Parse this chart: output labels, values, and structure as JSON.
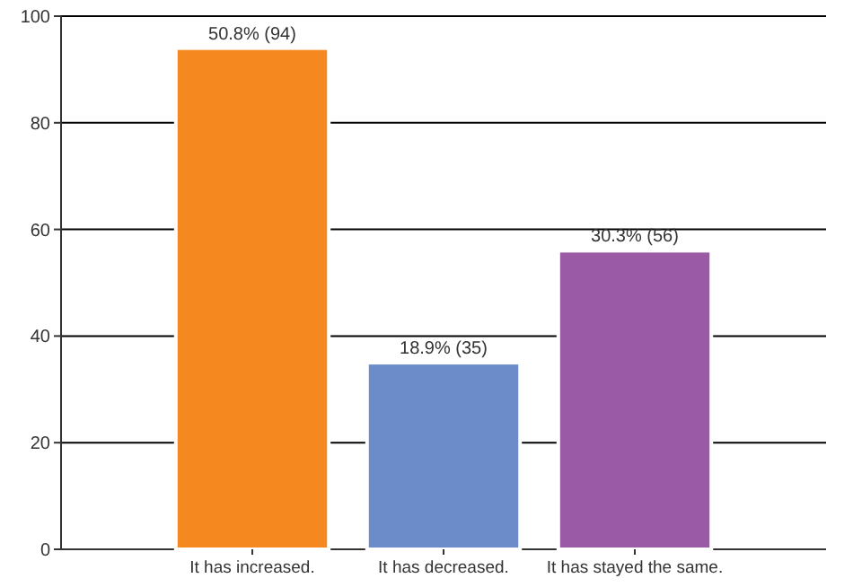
{
  "chart_data": {
    "type": "bar",
    "categories": [
      "It has increased.",
      "It has decreased.",
      "It has stayed the same."
    ],
    "values": [
      94,
      35,
      56
    ],
    "colors": [
      "#f5891f",
      "#6b8cc9",
      "#9b5aa6"
    ],
    "value_labels": [
      "50.8% (94)",
      "18.9% (35)",
      "30.3% (56)"
    ],
    "ylim": [
      0,
      100
    ],
    "yticks": [
      0,
      20,
      40,
      60,
      80,
      100
    ],
    "grid": "y"
  }
}
